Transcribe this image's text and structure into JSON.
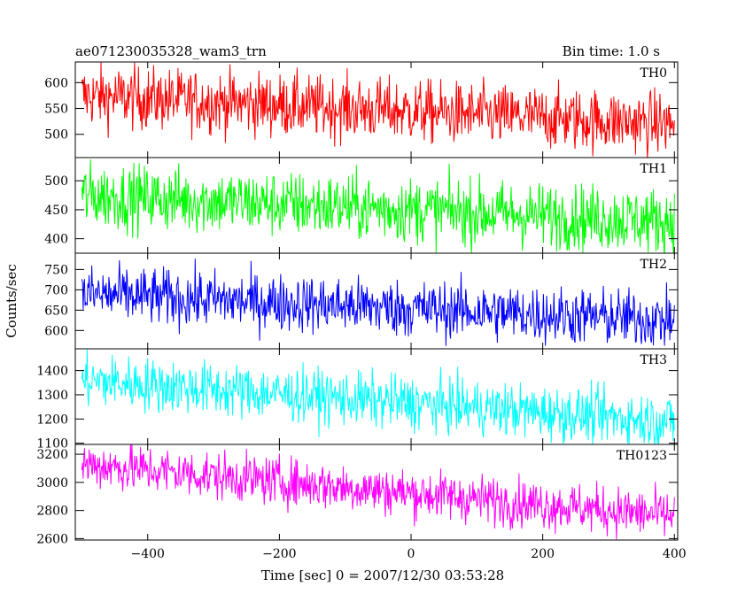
{
  "header": {
    "left": "ae071230035328_wam3_trn",
    "right": "Bin time: 1.0 s"
  },
  "chart_data": {
    "type": "line",
    "ylabel": "Counts/sec",
    "xlabel": "Time [sec] 0 = 2007/12/30 03:53:28",
    "xlim": [
      -510,
      405
    ],
    "x_start": -500,
    "x_end": 400,
    "x_ticks": [
      -400,
      -200,
      0,
      200,
      400
    ],
    "panels": [
      {
        "name": "TH0",
        "color": "#ff0000",
        "ylim": [
          455,
          640
        ],
        "yticks": [
          500,
          550,
          600
        ],
        "start": 575,
        "end": 520,
        "noise": 30
      },
      {
        "name": "TH1",
        "color": "#00ff00",
        "ylim": [
          375,
          540
        ],
        "yticks": [
          400,
          450,
          500
        ],
        "start": 475,
        "end": 430,
        "noise": 28
      },
      {
        "name": "TH2",
        "color": "#0000ff",
        "ylim": [
          555,
          790
        ],
        "yticks": [
          600,
          650,
          700,
          750
        ],
        "start": 690,
        "end": 625,
        "noise": 35
      },
      {
        "name": "TH3",
        "color": "#00ffff",
        "ylim": [
          1095,
          1490
        ],
        "yticks": [
          1100,
          1200,
          1300,
          1400
        ],
        "start": 1360,
        "end": 1190,
        "noise": 55
      },
      {
        "name": "TH0123",
        "color": "#ff00ff",
        "ylim": [
          2590,
          3270
        ],
        "yticks": [
          2600,
          2800,
          3000,
          3200
        ],
        "start": 3130,
        "end": 2760,
        "noise": 85
      }
    ]
  }
}
